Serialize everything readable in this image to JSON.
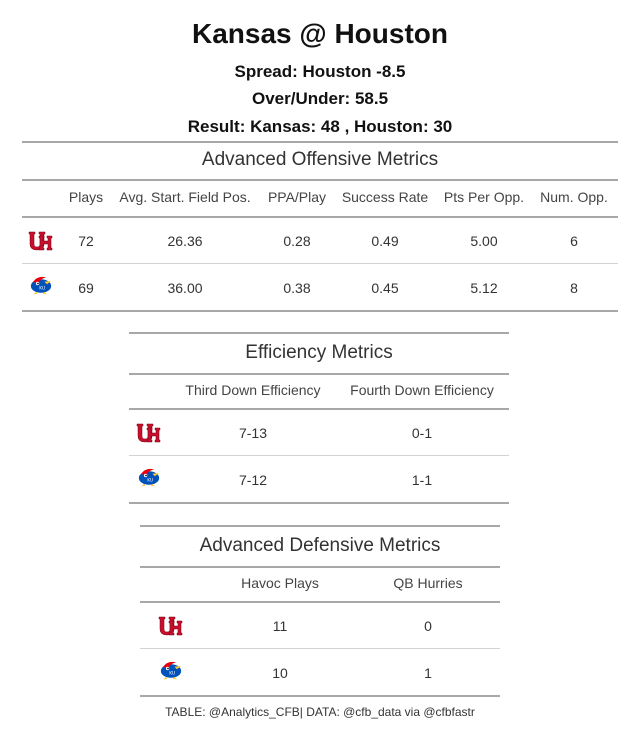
{
  "header": {
    "title": "Kansas @ Houston",
    "spread": "Spread: Houston -8.5",
    "over_under": "Over/Under: 58.5",
    "result": "Result: Kansas: 48 , Houston: 30"
  },
  "offensive": {
    "title": "Advanced Offensive Metrics",
    "columns": [
      "Plays",
      "Avg. Start. Field Pos.",
      "PPA/Play",
      "Success Rate",
      "Pts Per Opp.",
      "Num. Opp."
    ],
    "rows": [
      {
        "team_logo": "houston-logo",
        "values": [
          "72",
          "26.36",
          "0.28",
          "0.49",
          "5.00",
          "6"
        ]
      },
      {
        "team_logo": "kansas-logo",
        "values": [
          "69",
          "36.00",
          "0.38",
          "0.45",
          "5.12",
          "8"
        ]
      }
    ]
  },
  "efficiency": {
    "title": "Efficiency Metrics",
    "columns": [
      "Third Down Efficiency",
      "Fourth Down Efficiency"
    ],
    "rows": [
      {
        "team_logo": "houston-logo",
        "values": [
          "7-13",
          "0-1"
        ]
      },
      {
        "team_logo": "kansas-logo",
        "values": [
          "7-12",
          "1-1"
        ]
      }
    ]
  },
  "defensive": {
    "title": "Advanced Defensive Metrics",
    "columns": [
      "Havoc Plays",
      "QB Hurries"
    ],
    "rows": [
      {
        "team_logo": "houston-logo",
        "values": [
          "11",
          "0"
        ]
      },
      {
        "team_logo": "kansas-logo",
        "values": [
          "10",
          "1"
        ]
      }
    ]
  },
  "footer": {
    "caption": "TABLE: @Analytics_CFB| DATA: @cfb_data via @cfbfastr"
  },
  "colors": {
    "houston_red": "#c8102e",
    "kansas_blue": "#0051ba",
    "kansas_red": "#e8000d",
    "kansas_yellow": "#ffc82d",
    "rule_gray": "#a8a8a8"
  }
}
